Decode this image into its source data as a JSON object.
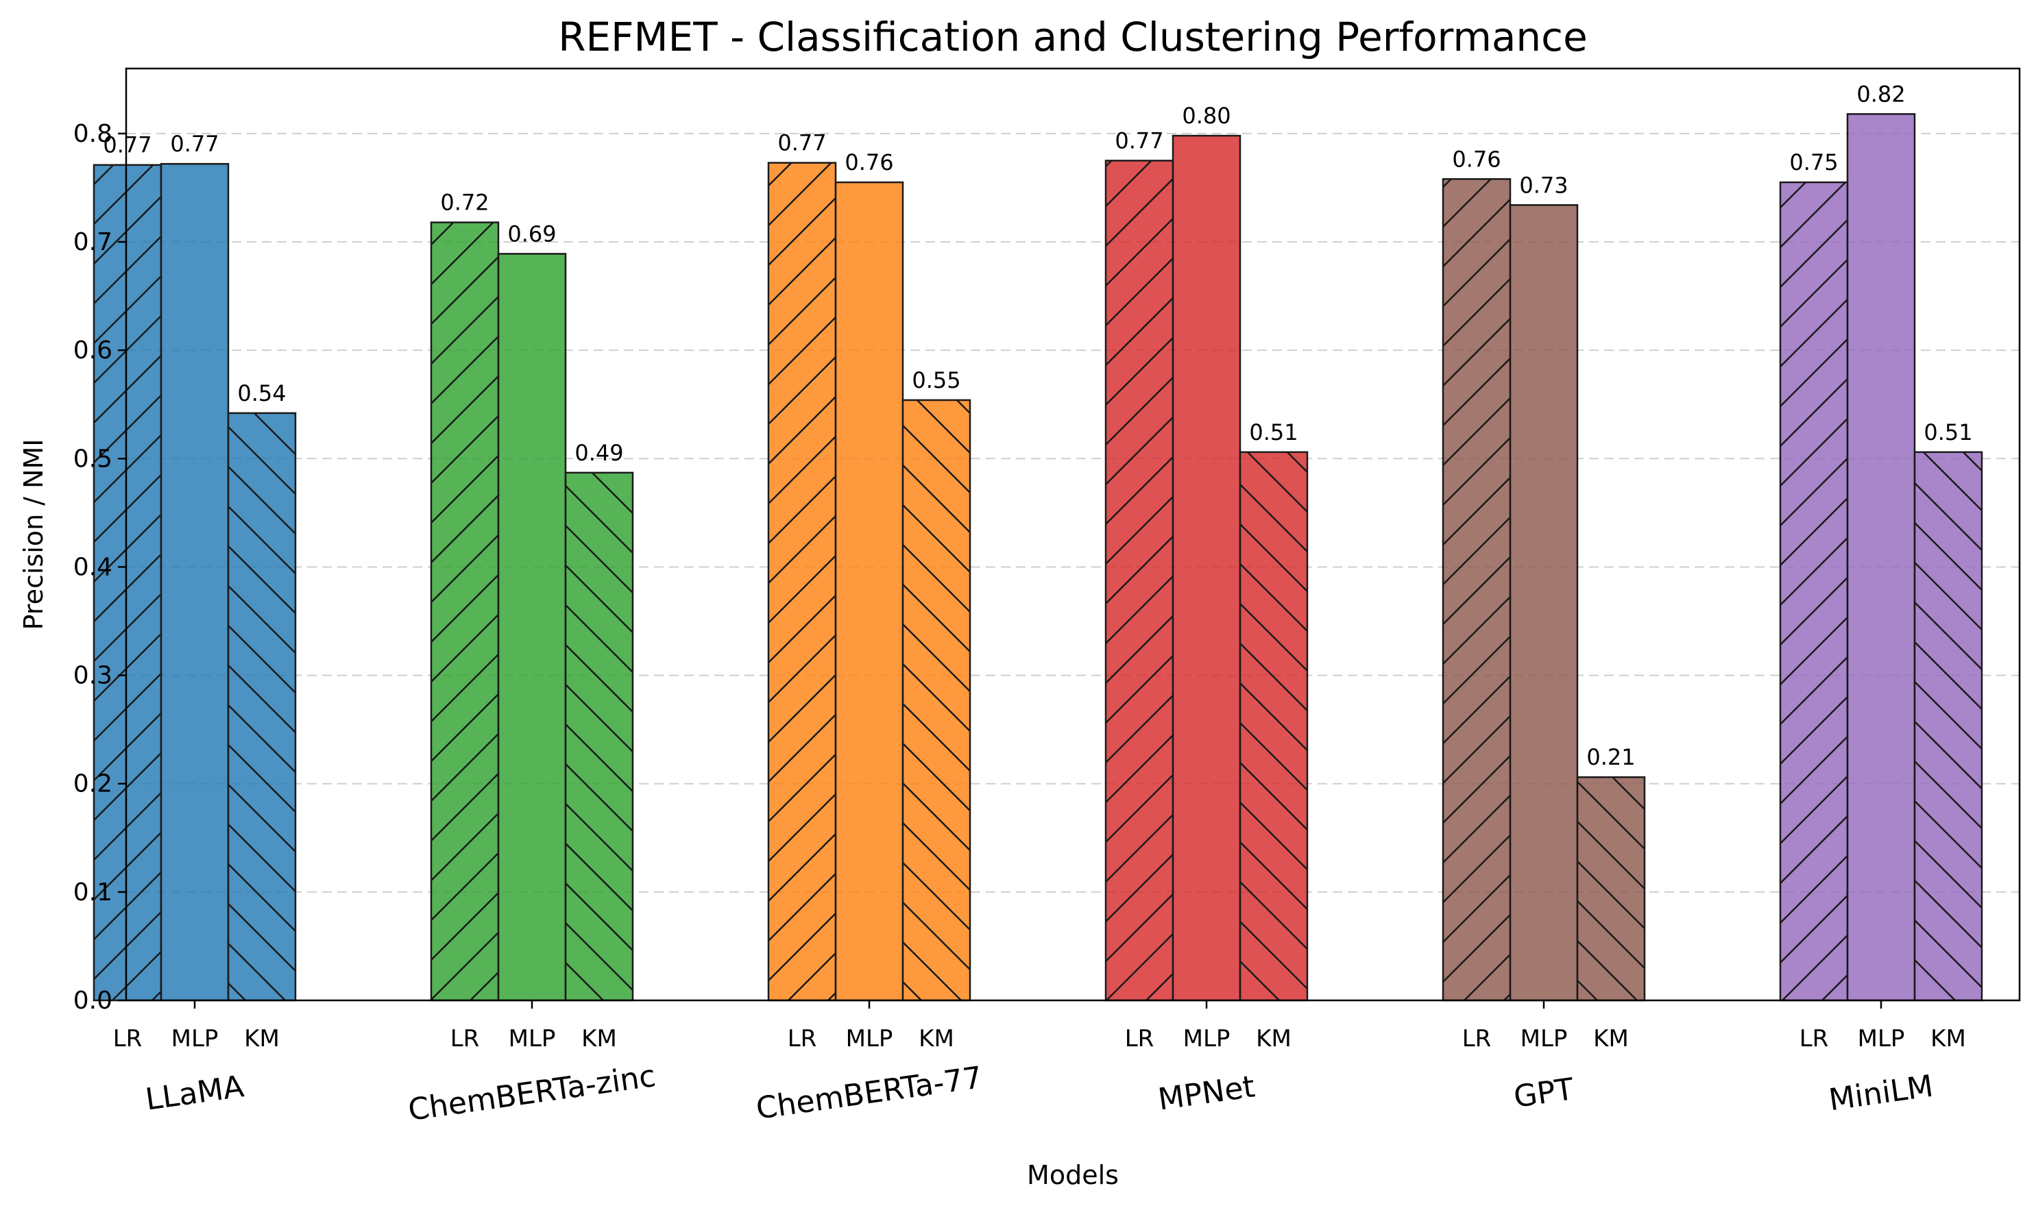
{
  "chart_data": {
    "type": "bar",
    "title": "REFMET - Classification and Clustering Performance",
    "xlabel": "Models",
    "ylabel": "Precision / NMI",
    "ylim": [
      0,
      0.86
    ],
    "yticks": [
      "0.0",
      "0.1",
      "0.2",
      "0.3",
      "0.4",
      "0.5",
      "0.6",
      "0.7",
      "0.8"
    ],
    "grid": true,
    "categories": [
      "LLaMA",
      "ChemBERTa-zinc",
      "ChemBERTa-77",
      "MPNet",
      "GPT",
      "MiniLM"
    ],
    "sub_categories": [
      "LR",
      "MLP",
      "KM"
    ],
    "colors": [
      "#1f77b4",
      "#2ca02c",
      "#ff7f0e",
      "#d62728",
      "#8c564b",
      "#9467bd"
    ],
    "series": [
      {
        "name": "LR",
        "hatch": "forward-diagonal",
        "values": [
          0.771,
          0.718,
          0.773,
          0.775,
          0.758,
          0.755
        ]
      },
      {
        "name": "MLP",
        "hatch": "none",
        "values": [
          0.772,
          0.689,
          0.755,
          0.798,
          0.734,
          0.818
        ]
      },
      {
        "name": "KM",
        "hatch": "back-diagonal",
        "values": [
          0.542,
          0.487,
          0.554,
          0.506,
          0.206,
          0.506
        ]
      }
    ],
    "data_labels": [
      [
        "0.77",
        "0.77",
        "0.54"
      ],
      [
        "0.72",
        "0.69",
        "0.49"
      ],
      [
        "0.77",
        "0.76",
        "0.55"
      ],
      [
        "0.77",
        "0.80",
        "0.51"
      ],
      [
        "0.76",
        "0.73",
        "0.21"
      ],
      [
        "0.75",
        "0.82",
        "0.51"
      ]
    ]
  }
}
